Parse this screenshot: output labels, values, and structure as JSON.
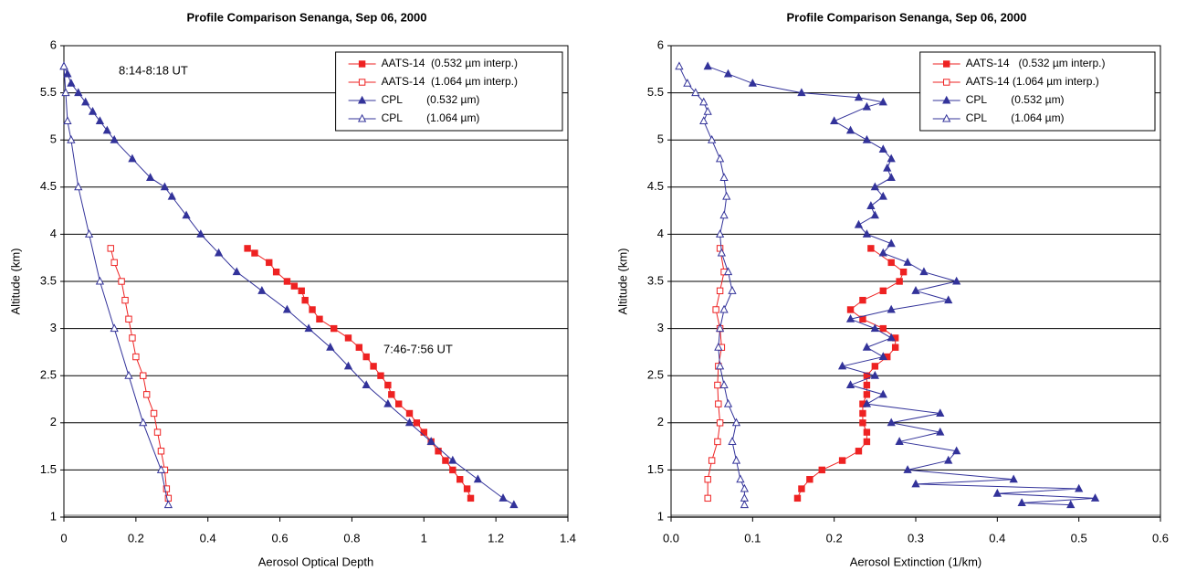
{
  "chart_data": [
    {
      "type": "line",
      "title": "Profile Comparison  Senanga, Sep 06, 2000",
      "xlabel": "Aerosol Optical Depth",
      "ylabel": "Altitude (km)",
      "xlim": [
        0,
        1.4
      ],
      "xticks": [
        0,
        0.2,
        0.4,
        0.6,
        0.8,
        1,
        1.2,
        1.4
      ],
      "ylim": [
        1,
        6
      ],
      "yticks": [
        1,
        1.5,
        2,
        2.5,
        3,
        3.5,
        4,
        4.5,
        5,
        5.5,
        6
      ],
      "grid": true,
      "legend": "upper right",
      "annotations": [
        {
          "text": "8:14-8:18 UT",
          "color": "#33339a"
        },
        {
          "text": "7:46-7:56 UT",
          "color": "#ee2222"
        }
      ],
      "series": [
        {
          "name": "AATS-14  (0.532 µm interp.)",
          "color": "#ee2222",
          "marker": "square",
          "filled": true,
          "x": [
            0.51,
            0.53,
            0.57,
            0.59,
            0.62,
            0.64,
            0.66,
            0.67,
            0.69,
            0.71,
            0.75,
            0.79,
            0.82,
            0.84,
            0.86,
            0.88,
            0.9,
            0.91,
            0.93,
            0.96,
            0.98,
            1.0,
            1.02,
            1.04,
            1.06,
            1.08,
            1.1,
            1.12,
            1.13
          ],
          "y": [
            3.85,
            3.8,
            3.7,
            3.6,
            3.5,
            3.45,
            3.4,
            3.3,
            3.2,
            3.1,
            3.0,
            2.9,
            2.8,
            2.7,
            2.6,
            2.5,
            2.4,
            2.3,
            2.2,
            2.1,
            2.0,
            1.9,
            1.8,
            1.7,
            1.6,
            1.5,
            1.4,
            1.3,
            1.2
          ]
        },
        {
          "name": "AATS-14  (1.064 µm interp.)",
          "color": "#ee2222",
          "marker": "square",
          "filled": false,
          "x": [
            0.13,
            0.14,
            0.16,
            0.17,
            0.18,
            0.19,
            0.2,
            0.22,
            0.23,
            0.25,
            0.26,
            0.27,
            0.28,
            0.285,
            0.29
          ],
          "y": [
            3.85,
            3.7,
            3.5,
            3.3,
            3.1,
            2.9,
            2.7,
            2.5,
            2.3,
            2.1,
            1.9,
            1.7,
            1.5,
            1.3,
            1.2
          ]
        },
        {
          "name": "CPL        (0.532 µm)",
          "color": "#33339a",
          "marker": "triangle",
          "filled": true,
          "x": [
            0.0,
            0.01,
            0.02,
            0.04,
            0.06,
            0.08,
            0.1,
            0.12,
            0.14,
            0.19,
            0.24,
            0.28,
            0.3,
            0.34,
            0.38,
            0.43,
            0.48,
            0.55,
            0.62,
            0.68,
            0.74,
            0.79,
            0.84,
            0.9,
            0.96,
            1.02,
            1.08,
            1.15,
            1.22,
            1.25
          ],
          "y": [
            5.78,
            5.7,
            5.6,
            5.5,
            5.4,
            5.3,
            5.2,
            5.1,
            5.0,
            4.8,
            4.6,
            4.5,
            4.4,
            4.2,
            4.0,
            3.8,
            3.6,
            3.4,
            3.2,
            3.0,
            2.8,
            2.6,
            2.4,
            2.2,
            2.0,
            1.8,
            1.6,
            1.4,
            1.2,
            1.13
          ]
        },
        {
          "name": "CPL        (1.064 µm)",
          "color": "#33339a",
          "marker": "triangle",
          "filled": false,
          "x": [
            0.0,
            0.005,
            0.01,
            0.02,
            0.04,
            0.07,
            0.1,
            0.14,
            0.18,
            0.22,
            0.27,
            0.29
          ],
          "y": [
            5.78,
            5.5,
            5.2,
            5.0,
            4.5,
            4.0,
            3.5,
            3.0,
            2.5,
            2.0,
            1.5,
            1.13
          ]
        }
      ]
    },
    {
      "type": "line",
      "title": "Profile Comparison Senanga, Sep 06, 2000",
      "xlabel": "Aerosol Extinction (1/km)",
      "ylabel": "Altitude (km)",
      "xlim": [
        0,
        0.6
      ],
      "xticks": [
        {
          "value": 0,
          "label": "0.0"
        },
        0.1,
        0.2,
        0.3,
        0.4,
        0.5,
        0.6
      ],
      "ylim": [
        1,
        6
      ],
      "yticks": [
        1,
        1.5,
        2,
        2.5,
        3,
        3.5,
        4,
        4.5,
        5,
        5.5,
        6
      ],
      "grid": true,
      "legend": "upper right",
      "series": [
        {
          "name": "AATS-14   (0.532 µm interp.)",
          "color": "#ee2222",
          "marker": "square",
          "filled": true,
          "x": [
            0.245,
            0.27,
            0.285,
            0.28,
            0.26,
            0.235,
            0.22,
            0.235,
            0.26,
            0.275,
            0.275,
            0.265,
            0.25,
            0.24,
            0.24,
            0.24,
            0.235,
            0.235,
            0.235,
            0.24,
            0.24,
            0.23,
            0.21,
            0.185,
            0.17,
            0.16,
            0.155
          ],
          "y": [
            3.85,
            3.7,
            3.6,
            3.5,
            3.4,
            3.3,
            3.2,
            3.1,
            3.0,
            2.9,
            2.8,
            2.7,
            2.6,
            2.5,
            2.4,
            2.3,
            2.2,
            2.1,
            2.0,
            1.9,
            1.8,
            1.7,
            1.6,
            1.5,
            1.4,
            1.3,
            1.2
          ]
        },
        {
          "name": "AATS-14 (1.064 µm interp.)",
          "color": "#ee2222",
          "marker": "square",
          "filled": false,
          "x": [
            0.06,
            0.065,
            0.06,
            0.055,
            0.06,
            0.062,
            0.058,
            0.057,
            0.058,
            0.06,
            0.057,
            0.05,
            0.045,
            0.045
          ],
          "y": [
            3.85,
            3.6,
            3.4,
            3.2,
            3.0,
            2.8,
            2.6,
            2.4,
            2.2,
            2.0,
            1.8,
            1.6,
            1.4,
            1.2
          ]
        },
        {
          "name": "CPL        (0.532 µm)",
          "color": "#33339a",
          "marker": "triangle",
          "filled": true,
          "x": [
            0.045,
            0.07,
            0.1,
            0.16,
            0.23,
            0.26,
            0.24,
            0.2,
            0.22,
            0.24,
            0.26,
            0.27,
            0.265,
            0.27,
            0.25,
            0.26,
            0.245,
            0.25,
            0.23,
            0.24,
            0.27,
            0.26,
            0.29,
            0.31,
            0.35,
            0.3,
            0.34,
            0.27,
            0.22,
            0.25,
            0.27,
            0.24,
            0.26,
            0.21,
            0.25,
            0.22,
            0.26,
            0.24,
            0.33,
            0.27,
            0.33,
            0.28,
            0.35,
            0.34,
            0.29,
            0.42,
            0.3,
            0.5,
            0.4,
            0.52,
            0.43,
            0.49
          ],
          "y": [
            5.78,
            5.7,
            5.6,
            5.5,
            5.45,
            5.4,
            5.35,
            5.2,
            5.1,
            5.0,
            4.9,
            4.8,
            4.7,
            4.6,
            4.5,
            4.4,
            4.3,
            4.2,
            4.1,
            4.0,
            3.9,
            3.8,
            3.7,
            3.6,
            3.5,
            3.4,
            3.3,
            3.2,
            3.1,
            3.0,
            2.9,
            2.8,
            2.7,
            2.6,
            2.5,
            2.4,
            2.3,
            2.2,
            2.1,
            2.0,
            1.9,
            1.8,
            1.7,
            1.6,
            1.5,
            1.4,
            1.35,
            1.3,
            1.25,
            1.2,
            1.15,
            1.13
          ]
        },
        {
          "name": "CPL        (1.064 µm)",
          "color": "#33339a",
          "marker": "triangle",
          "filled": false,
          "x": [
            0.01,
            0.02,
            0.03,
            0.04,
            0.045,
            0.04,
            0.05,
            0.06,
            0.065,
            0.068,
            0.065,
            0.06,
            0.062,
            0.07,
            0.075,
            0.065,
            0.06,
            0.058,
            0.06,
            0.065,
            0.07,
            0.08,
            0.075,
            0.08,
            0.085,
            0.09,
            0.09,
            0.09
          ],
          "y": [
            5.78,
            5.6,
            5.5,
            5.4,
            5.3,
            5.2,
            5.0,
            4.8,
            4.6,
            4.4,
            4.2,
            4.0,
            3.8,
            3.6,
            3.4,
            3.2,
            3.0,
            2.8,
            2.6,
            2.4,
            2.2,
            2.0,
            1.8,
            1.6,
            1.4,
            1.3,
            1.2,
            1.13
          ]
        }
      ]
    }
  ]
}
